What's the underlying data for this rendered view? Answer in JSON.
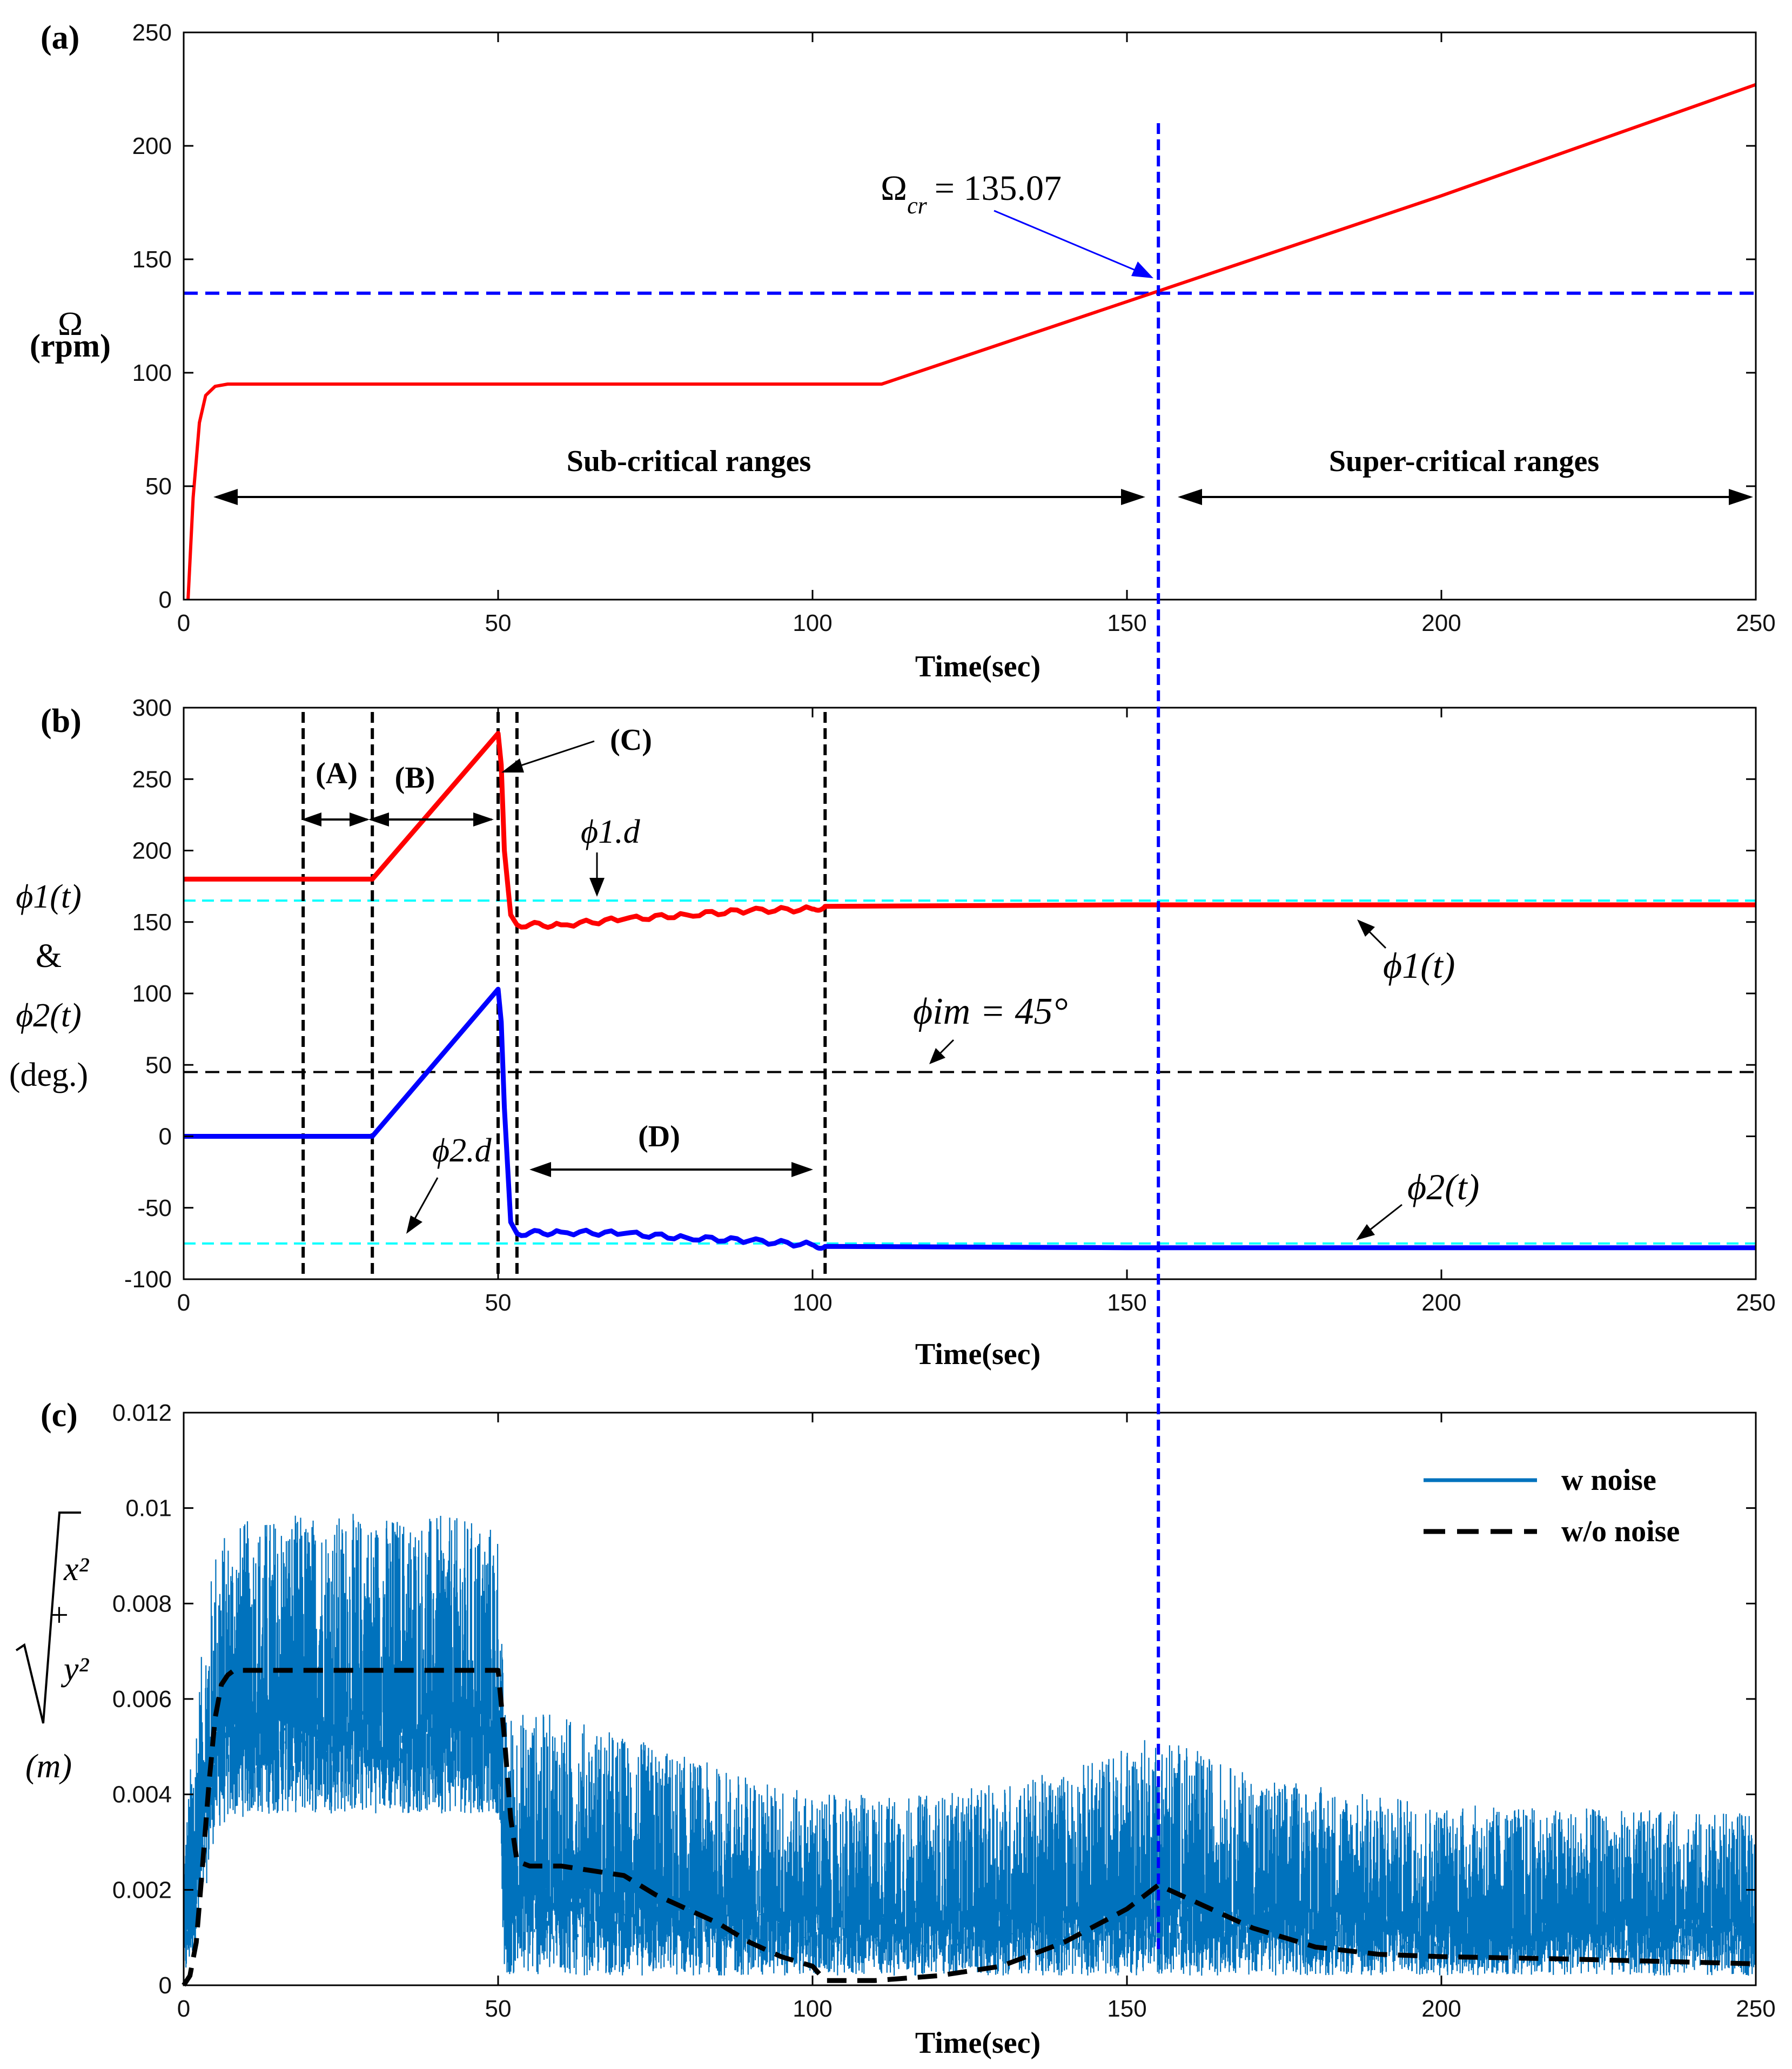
{
  "colors": {
    "omega_line": "#ff0000",
    "phi1_line": "#ff0000",
    "phi2_line": "#0000ff",
    "blue_dashed": "#0000ff",
    "cyan_dashed": "#00ffff",
    "black_dashed": "#000000",
    "noise_fill": "#0072bd"
  },
  "panel_a": {
    "label": "(a)",
    "ylabel_symbol": "Ω",
    "ylabel_unit": "(rpm)",
    "xlabel": "Time(sec)",
    "crit_symbol": "Ω",
    "crit_sub": "cr",
    "crit_value": "= 135.07",
    "sub_critical_label": "Sub-critical ranges",
    "super_critical_label": "Super-critical ranges"
  },
  "panel_b": {
    "label": "(b)",
    "xlabel": "Time(sec)",
    "ylabel_phi1": "ϕ1(t)",
    "ylabel_amp": "&",
    "ylabel_phi2": "ϕ2(t)",
    "ylabel_unit": "(deg.)",
    "region_A": "(A)",
    "region_B": "(B)",
    "region_C": "(C)",
    "region_D": "(D)",
    "phi_im_label": "ϕim = 45°",
    "phi1d_label": "ϕ1.d",
    "phi2d_label": "ϕ2.d",
    "phi1_curve_label": "ϕ1(t)",
    "phi2_curve_label": "ϕ2(t)"
  },
  "panel_c": {
    "label": "(c)",
    "xlabel": "Time(sec)",
    "ylabel_x2": "x²",
    "ylabel_plus": "+",
    "ylabel_y2": "y²",
    "ylabel_unit": "(m)",
    "legend": [
      "w noise",
      "w/o noise"
    ]
  },
  "chart_data": [
    {
      "type": "line",
      "id": "a",
      "title": "(a)",
      "xlabel": "Time(sec)",
      "ylabel": "Ω (rpm)",
      "xlim": [
        0,
        250
      ],
      "ylim": [
        0,
        250
      ],
      "xticks": [
        0,
        50,
        100,
        150,
        200,
        250
      ],
      "yticks": [
        0,
        50,
        100,
        150,
        200,
        250
      ],
      "series": [
        {
          "name": "Ω",
          "x": [
            0.7,
            1.5,
            2.5,
            3.5,
            5,
            7,
            10,
            50,
            100,
            111,
            155,
            200,
            250
          ],
          "y": [
            0,
            45,
            78,
            90,
            94,
            95,
            95,
            95,
            95,
            95,
            136,
            178,
            227
          ]
        }
      ],
      "reference_lines": [
        {
          "orientation": "horizontal",
          "value": 135.07,
          "style": "dashed",
          "color": "blue"
        },
        {
          "orientation": "vertical",
          "value": 155,
          "style": "dashed",
          "color": "blue"
        }
      ],
      "annotations": [
        "Ωcr = 135.07",
        "Sub-critical ranges",
        "Super-critical ranges"
      ]
    },
    {
      "type": "line",
      "id": "b",
      "title": "(b)",
      "xlabel": "Time(sec)",
      "ylabel": "ϕ1(t) & ϕ2(t) (deg.)",
      "xlim": [
        0,
        250
      ],
      "ylim": [
        -100,
        300
      ],
      "xticks": [
        0,
        50,
        100,
        150,
        200,
        250
      ],
      "yticks": [
        -100,
        -50,
        0,
        50,
        100,
        150,
        200,
        250,
        300
      ],
      "series": [
        {
          "name": "ϕ1(t)",
          "x": [
            0,
            30,
            50,
            50.5,
            51,
            52,
            53,
            60,
            70,
            80,
            90,
            100,
            102,
            150,
            250
          ],
          "y": [
            180,
            180,
            282,
            260,
            200,
            155,
            148,
            148,
            152,
            155,
            158,
            159,
            161,
            162,
            162
          ]
        },
        {
          "name": "ϕ2(t)",
          "x": [
            0,
            30,
            50,
            50.5,
            51,
            52,
            53,
            60,
            70,
            80,
            90,
            100,
            102,
            150,
            250
          ],
          "y": [
            0,
            0,
            103,
            80,
            20,
            -60,
            -68,
            -67,
            -68,
            -71,
            -73,
            -76,
            -77,
            -78,
            -78
          ]
        }
      ],
      "reference_lines": [
        {
          "orientation": "horizontal",
          "value": 165,
          "label": "ϕ1.d",
          "color": "cyan"
        },
        {
          "orientation": "horizontal",
          "value": -75,
          "label": "ϕ2.d",
          "color": "cyan"
        },
        {
          "orientation": "horizontal",
          "value": 45,
          "label": "ϕim = 45°",
          "color": "black"
        },
        {
          "orientation": "vertical",
          "value": 19,
          "color": "black"
        },
        {
          "orientation": "vertical",
          "value": 30,
          "color": "black"
        },
        {
          "orientation": "vertical",
          "value": 50,
          "color": "black"
        },
        {
          "orientation": "vertical",
          "value": 53,
          "color": "black"
        },
        {
          "orientation": "vertical",
          "value": 102,
          "color": "black"
        }
      ],
      "annotations": [
        "(A)",
        "(B)",
        "(C)",
        "(D)"
      ]
    },
    {
      "type": "line",
      "id": "c",
      "title": "(c)",
      "xlabel": "Time(sec)",
      "ylabel": "√(x² + y²) (m)",
      "xlim": [
        0,
        250
      ],
      "ylim": [
        0,
        0.012
      ],
      "xticks": [
        0,
        50,
        100,
        150,
        200,
        250
      ],
      "yticks": [
        0,
        0.002,
        0.004,
        0.006,
        0.008,
        0.01,
        0.012
      ],
      "ytick_labels": [
        "0",
        "0.002",
        "0.004",
        "0.006",
        "0.008",
        "0.01",
        "0.012"
      ],
      "series": [
        {
          "name": "w noise",
          "style": "band",
          "x": [
            0,
            2,
            5,
            8,
            15,
            25,
            35,
            45,
            50,
            51,
            60,
            80,
            100,
            120,
            140,
            155,
            170,
            200,
            250
          ],
          "upper": [
            0.003,
            0.006,
            0.0093,
            0.0097,
            0.0099,
            0.0099,
            0.0099,
            0.0098,
            0.0097,
            0.0058,
            0.0057,
            0.0048,
            0.004,
            0.004,
            0.0045,
            0.0053,
            0.0044,
            0.0038,
            0.0036
          ],
          "lower": [
            0,
            0.0008,
            0.0032,
            0.0035,
            0.0036,
            0.0036,
            0.0036,
            0.0036,
            0.0036,
            0.0002,
            0.0002,
            0.0002,
            0.0002,
            0.0002,
            0.0002,
            0.0002,
            0.0002,
            0.0002,
            0.0002
          ]
        },
        {
          "name": "w/o noise",
          "style": "dashed",
          "x": [
            0,
            1,
            2,
            3,
            4,
            5,
            6,
            7,
            8,
            20,
            50,
            51,
            52,
            53,
            55,
            60,
            65,
            70,
            75,
            80,
            85,
            90,
            95,
            100,
            102,
            110,
            120,
            130,
            140,
            150,
            155,
            160,
            170,
            180,
            190,
            200,
            220,
            250
          ],
          "y": [
            0,
            0.0002,
            0.0009,
            0.0025,
            0.0042,
            0.0056,
            0.0063,
            0.0065,
            0.0066,
            0.0066,
            0.0066,
            0.0052,
            0.0035,
            0.0026,
            0.0025,
            0.0025,
            0.0024,
            0.0023,
            0.0019,
            0.0016,
            0.0013,
            0.0009,
            0.0006,
            0.0004,
            0.0001,
            0.0001,
            0.0002,
            0.0004,
            0.0009,
            0.0016,
            0.0021,
            0.0018,
            0.0012,
            0.0008,
            0.00065,
            0.0006,
            0.00055,
            0.00045
          ]
        }
      ],
      "legend_position": "top-right",
      "reference_lines": [
        {
          "orientation": "vertical",
          "value": 155,
          "style": "dashed",
          "color": "blue"
        }
      ]
    }
  ]
}
